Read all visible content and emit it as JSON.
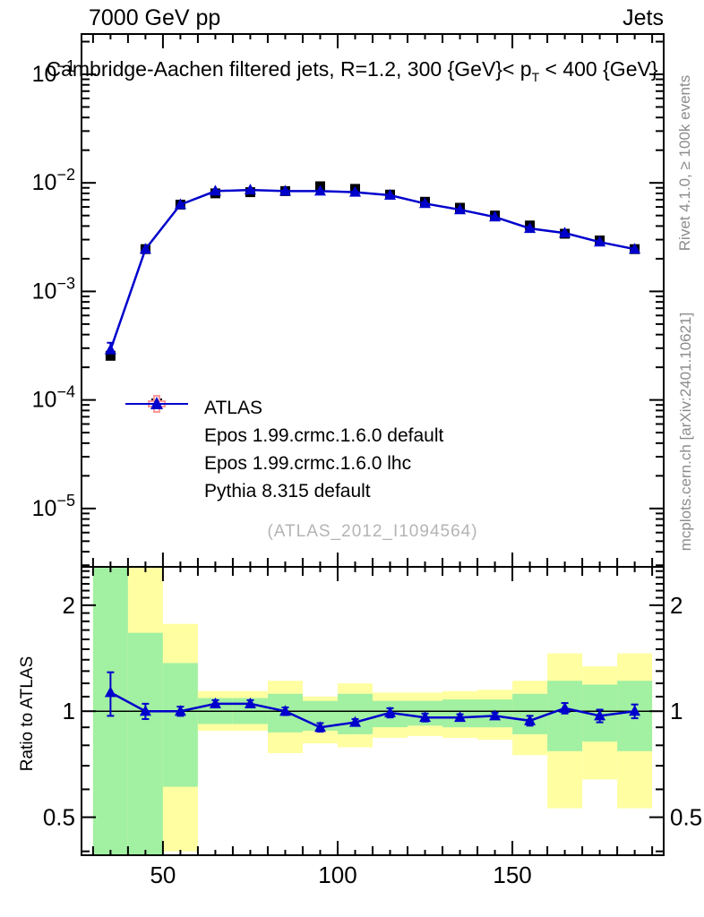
{
  "header": {
    "left": "7000 GeV pp",
    "right": "Jets"
  },
  "title": {
    "pre": "Cambridge-Aachen filtered jets, R=1.2, 300 {GeV}< p",
    "sub": "T",
    "post": " < 400 {GeV}"
  },
  "side_notes": {
    "top": "Rivet 4.1.0, ≥ 100k events",
    "bottom": "mcplots.cern.ch [arXiv:2401.10621]"
  },
  "watermark": "(ATLAS_2012_I1094564)",
  "ratio_axis_label": "Ratio to ATLAS",
  "colors": {
    "frame": "#000000",
    "pythia_blue": "#0000cc",
    "epos_default_maroon": "#993355",
    "epos_lhc_salmon": "#ff9999",
    "band_green": "#a2f0a2",
    "band_yellow": "#ffffa2",
    "gray_text": "#8c8c8c",
    "watermark_gray": "#b4b4b4"
  },
  "legend": {
    "entries": [
      {
        "label": "ATLAS",
        "marker": "square",
        "color": "#000000",
        "line": "none"
      },
      {
        "label": "Epos 1.99.crmc.1.6.0 default",
        "marker": "open-cross",
        "color": "#993355",
        "line": "dotted"
      },
      {
        "label": "Epos 1.99.crmc.1.6.0 lhc",
        "marker": "open-cross",
        "color": "#ff9999",
        "line": "solid"
      },
      {
        "label": "Pythia 8.315 default",
        "marker": "triangle",
        "color": "#0000cc",
        "line": "solid"
      }
    ]
  },
  "chart_data": [
    {
      "type": "line",
      "panel": "main",
      "title": "Cambridge-Aachen filtered jets, R=1.2, 300 {GeV}< pT < 400 {GeV}",
      "xlim": [
        26.7,
        193.3
      ],
      "ylog": true,
      "ylim": [
        2.9e-06,
        0.235
      ],
      "xticks": [
        50,
        100,
        150
      ],
      "xtick_minor_step": 5,
      "ytick_exponents": [
        -1,
        -2,
        -3,
        -4,
        -5
      ],
      "x": [
        35,
        45,
        55,
        65,
        75,
        85,
        95,
        105,
        115,
        125,
        135,
        145,
        155,
        165,
        175,
        185
      ],
      "series": [
        {
          "name": "ATLAS",
          "marker": "square",
          "color": "#000000",
          "linestyle": "none",
          "values": [
            0.000255,
            0.00245,
            0.0063,
            0.008,
            0.0082,
            0.0084,
            0.0093,
            0.0088,
            0.0078,
            0.0067,
            0.0059,
            0.005,
            0.00405,
            0.0034,
            0.00295,
            0.00245
          ]
        },
        {
          "name": "Epos 1.99.crmc.1.6.0 default",
          "marker": "open-cross",
          "color": "#993355",
          "linestyle": "dotted",
          "values": []
        },
        {
          "name": "Epos 1.99.crmc.1.6.0 lhc",
          "marker": "open-cross",
          "color": "#ff9999",
          "linestyle": "solid",
          "values": []
        },
        {
          "name": "Pythia 8.315 default",
          "marker": "triangle",
          "color": "#0000cc",
          "linestyle": "solid",
          "values": [
            0.00029,
            0.00245,
            0.0063,
            0.0084,
            0.0086,
            0.0084,
            0.0084,
            0.0082,
            0.0077,
            0.00645,
            0.00565,
            0.00485,
            0.0038,
            0.00345,
            0.00285,
            0.00245
          ],
          "yerr_rel": [
            0.16,
            0.05,
            0.03,
            0.025,
            0.025,
            0.025,
            0.025,
            0.02,
            0.03,
            0.025,
            0.02,
            0.02,
            0.03,
            0.035,
            0.04,
            0.045
          ]
        }
      ]
    },
    {
      "type": "ratio",
      "panel": "ratio",
      "ylabel": "Ratio to ATLAS",
      "ylog": true,
      "ylim": [
        0.39,
        2.57
      ],
      "yticks": [
        0.5,
        1,
        2
      ],
      "reference_line": 1,
      "x": [
        35,
        45,
        55,
        65,
        75,
        85,
        95,
        105,
        115,
        125,
        135,
        145,
        155,
        165,
        175,
        185
      ],
      "values": [
        1.13,
        1.0,
        1.0,
        1.05,
        1.05,
        1.0,
        0.9,
        0.93,
        0.99,
        0.96,
        0.96,
        0.97,
        0.94,
        1.02,
        0.97,
        1.0
      ],
      "errors": [
        0.16,
        0.05,
        0.03,
        0.025,
        0.025,
        0.025,
        0.025,
        0.02,
        0.03,
        0.025,
        0.02,
        0.02,
        0.03,
        0.035,
        0.04,
        0.045
      ],
      "bands": [
        {
          "x0": 30,
          "x1": 40,
          "yellow": [
            0.39,
            2.57
          ],
          "green": [
            0.39,
            2.57
          ]
        },
        {
          "x0": 40,
          "x1": 50,
          "yellow": [
            0.39,
            2.57
          ],
          "green": [
            0.39,
            1.67
          ]
        },
        {
          "x0": 50,
          "x1": 60,
          "yellow": [
            0.4,
            1.77
          ],
          "green": [
            0.61,
            1.37
          ]
        },
        {
          "x0": 60,
          "x1": 70,
          "yellow": [
            0.88,
            1.14
          ],
          "green": [
            0.92,
            1.09
          ]
        },
        {
          "x0": 70,
          "x1": 80,
          "yellow": [
            0.88,
            1.14
          ],
          "green": [
            0.92,
            1.09
          ]
        },
        {
          "x0": 80,
          "x1": 90,
          "yellow": [
            0.76,
            1.22
          ],
          "green": [
            0.87,
            1.12
          ]
        },
        {
          "x0": 90,
          "x1": 100,
          "yellow": [
            0.81,
            1.1
          ],
          "green": [
            0.88,
            1.07
          ]
        },
        {
          "x0": 100,
          "x1": 110,
          "yellow": [
            0.79,
            1.2
          ],
          "green": [
            0.86,
            1.12
          ]
        },
        {
          "x0": 110,
          "x1": 120,
          "yellow": [
            0.84,
            1.13
          ],
          "green": [
            0.9,
            1.07
          ]
        },
        {
          "x0": 120,
          "x1": 130,
          "yellow": [
            0.85,
            1.13
          ],
          "green": [
            0.91,
            1.07
          ]
        },
        {
          "x0": 130,
          "x1": 140,
          "yellow": [
            0.84,
            1.14
          ],
          "green": [
            0.9,
            1.08
          ]
        },
        {
          "x0": 140,
          "x1": 150,
          "yellow": [
            0.83,
            1.15
          ],
          "green": [
            0.9,
            1.08
          ]
        },
        {
          "x0": 150,
          "x1": 160,
          "yellow": [
            0.75,
            1.22
          ],
          "green": [
            0.86,
            1.12
          ]
        },
        {
          "x0": 160,
          "x1": 170,
          "yellow": [
            0.53,
            1.46
          ],
          "green": [
            0.77,
            1.22
          ]
        },
        {
          "x0": 170,
          "x1": 180,
          "yellow": [
            0.64,
            1.34
          ],
          "green": [
            0.82,
            1.19
          ]
        },
        {
          "x0": 180,
          "x1": 190,
          "yellow": [
            0.53,
            1.46
          ],
          "green": [
            0.77,
            1.22
          ]
        }
      ]
    }
  ]
}
